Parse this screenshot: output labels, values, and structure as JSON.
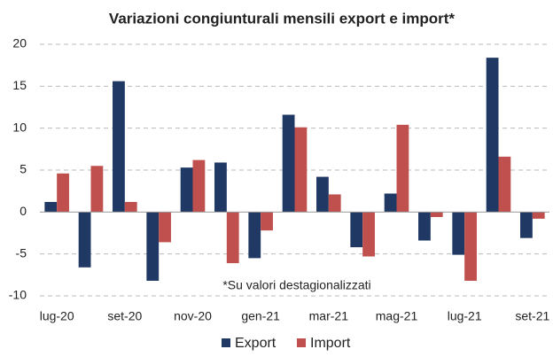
{
  "chart_data": {
    "type": "bar",
    "title": "Variazioni congiunturali mensili export e import*",
    "annotation": "*Su valori destagionalizzati",
    "categories": [
      "lug-20",
      null,
      "set-20",
      null,
      "nov-20",
      null,
      "gen-21",
      null,
      "mar-21",
      null,
      "mag-21",
      null,
      "lug-21",
      null,
      "set-21"
    ],
    "series": [
      {
        "name": "Export",
        "color": "#1f3864",
        "values": [
          1.2,
          -6.6,
          15.6,
          -8.2,
          5.3,
          5.9,
          -5.5,
          11.6,
          4.2,
          -4.2,
          2.2,
          -3.4,
          -5.1,
          18.4,
          -3.1
        ]
      },
      {
        "name": "Import",
        "color": "#c0504d",
        "values": [
          4.6,
          5.5,
          1.2,
          -3.6,
          6.2,
          -6.1,
          -2.2,
          10.1,
          2.1,
          -5.3,
          10.4,
          -0.6,
          -8.2,
          6.6,
          -0.8
        ]
      }
    ],
    "ylim": [
      -10,
      20
    ],
    "yticks": [
      -10,
      -5,
      0,
      5,
      10,
      15,
      20
    ],
    "grid": true,
    "legend": "bottom"
  }
}
